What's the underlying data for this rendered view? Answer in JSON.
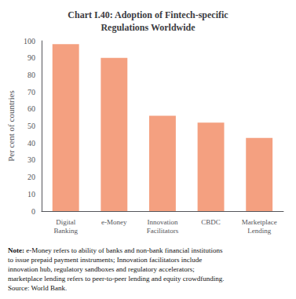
{
  "chart_data": {
    "type": "bar",
    "title": "Chart I.40: Adoption of Fintech-specific\nRegulations Worldwide",
    "categories": [
      "Digital\nBanking",
      "e-Money",
      "Innovation\nFacilitators",
      "CBDC",
      "Marketplace\nLending"
    ],
    "values": [
      98,
      90,
      56,
      52,
      43
    ],
    "color": "#F4A080",
    "ylabel": "Per cent of countries",
    "ylim": [
      0,
      100
    ],
    "yticks": [
      0,
      10,
      20,
      30,
      40,
      50,
      60,
      70,
      80,
      90,
      100
    ],
    "grid": false,
    "note": "Note: e-Money refers to ability of banks and non-bank financial institutions\nto issue prepaid payment instruments; Innovation facilitators include\ninnovation hub, regulatory sandboxes and regulatory accelerators;\nmarketplace lending refers to peer-to-peer lending and equity crowdfunding.\nSource: World Bank."
  }
}
